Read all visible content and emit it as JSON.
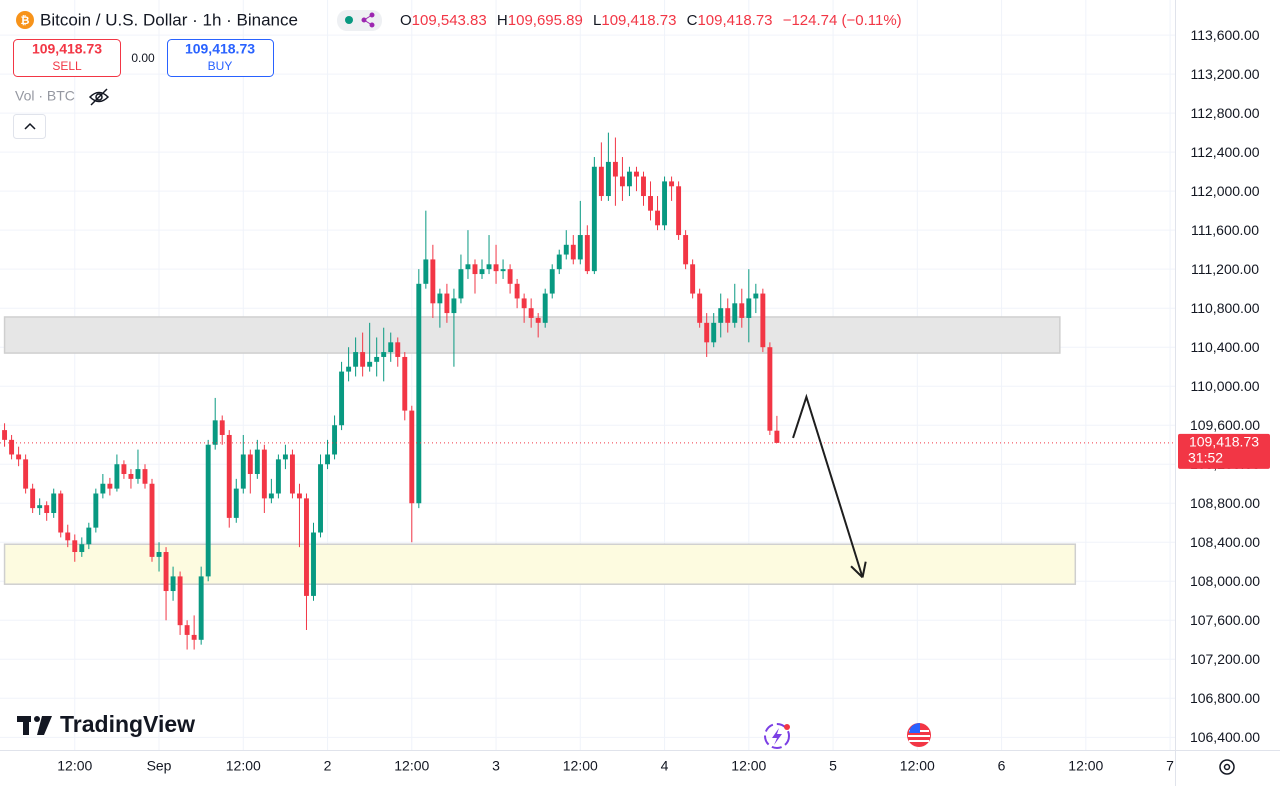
{
  "chart_data": {
    "type": "candlestick",
    "title": "Bitcoin / U.S. Dollar · 1h · Binance",
    "legend": {
      "o": "O",
      "o_value": "109,543.83",
      "h": "H",
      "h_value": "109,695.89",
      "l": "L",
      "l_value": "109,418.73",
      "c": "C",
      "c_value": "109,418.73",
      "change": "−124.74 (−0.11%)"
    },
    "trade": {
      "sell_price": "109,418.73",
      "sell": "SELL",
      "spread": "0.00",
      "buy_price": "109,418.73",
      "buy": "BUY"
    },
    "volume_label": "Vol · BTC",
    "brand": "TradingView",
    "last_price_label": "109,418.73",
    "countdown": "31:52",
    "up_color": "#089981",
    "down_color": "#f23645",
    "grid": true,
    "x": [
      2,
      3,
      4,
      5,
      6,
      7,
      8,
      9,
      10,
      11,
      12,
      13,
      14,
      15,
      16,
      17,
      18,
      19,
      20,
      21,
      22,
      23,
      24,
      25,
      26,
      27,
      28,
      29,
      30,
      31,
      32,
      33,
      34,
      35,
      36,
      37,
      38,
      39,
      40,
      41,
      42,
      43,
      44,
      45,
      46,
      47,
      48,
      49,
      50,
      51,
      52,
      53,
      54,
      55,
      56,
      57,
      58,
      59,
      60,
      61,
      62,
      63,
      64,
      65,
      66,
      67,
      68,
      69,
      70,
      71,
      72,
      73,
      74,
      75,
      76,
      77,
      78,
      79,
      80,
      81,
      82,
      83,
      84,
      85,
      86,
      87,
      88,
      89,
      90,
      91,
      92,
      93,
      94,
      95,
      96,
      97,
      98,
      99,
      100,
      101,
      102,
      103,
      104,
      105,
      106,
      107,
      108,
      109,
      110,
      111,
      112
    ],
    "open": [
      109550,
      109450,
      109300,
      109250,
      108950,
      108750,
      108780,
      108700,
      108900,
      108500,
      108420,
      108300,
      108380,
      108550,
      108900,
      109000,
      108950,
      109200,
      109100,
      109050,
      109150,
      109000,
      108250,
      108300,
      107900,
      108050,
      107550,
      107450,
      107400,
      108050,
      109400,
      109650,
      109500,
      108650,
      108950,
      109300,
      109100,
      109350,
      108850,
      108900,
      109250,
      109300,
      108900,
      108850,
      107850,
      108500,
      109200,
      109300,
      109600,
      110150,
      110200,
      110350,
      110200,
      110250,
      110300,
      110350,
      110450,
      110300,
      109750,
      108800,
      111050,
      111300,
      110850,
      110950,
      110750,
      110900,
      111200,
      111250,
      111150,
      111200,
      111250,
      111180,
      111200,
      111050,
      110900,
      110800,
      110700,
      110650,
      110950,
      111200,
      111350,
      111450,
      111300,
      111550,
      111180,
      112250,
      111950,
      112300,
      112150,
      112050,
      112200,
      112150,
      111950,
      111800,
      111650,
      112100,
      112050,
      111550,
      111250,
      110950,
      110650,
      110450,
      110650,
      110800,
      110650,
      110850,
      110700,
      110900,
      110950,
      110400,
      109543.83
    ],
    "high": [
      109620,
      109500,
      109380,
      109300,
      109000,
      108850,
      108820,
      108950,
      108930,
      108580,
      108480,
      108450,
      108600,
      108950,
      109100,
      109060,
      109300,
      109240,
      109150,
      109350,
      109200,
      109050,
      108400,
      108350,
      108150,
      108100,
      107600,
      107650,
      108150,
      109450,
      109880,
      109700,
      109550,
      109050,
      109500,
      109350,
      109450,
      109400,
      109050,
      109300,
      109400,
      109350,
      109000,
      108900,
      108600,
      109300,
      109450,
      109700,
      110250,
      110400,
      110500,
      110550,
      110650,
      110500,
      110600,
      110550,
      110500,
      110350,
      109800,
      111200,
      111800,
      111450,
      111000,
      111050,
      111000,
      111350,
      111600,
      111300,
      111300,
      111550,
      111450,
      111300,
      111250,
      111100,
      110950,
      110900,
      110750,
      111000,
      111250,
      111400,
      111600,
      111550,
      111900,
      111650,
      112350,
      112500,
      112600,
      112550,
      112350,
      112250,
      112250,
      112200,
      112100,
      111950,
      112150,
      112150,
      112100,
      111600,
      111300,
      111000,
      110750,
      110750,
      110950,
      110900,
      111050,
      111000,
      111200,
      111050,
      111000,
      110450,
      109695.89
    ],
    "low": [
      109380,
      109250,
      109180,
      108900,
      108700,
      108680,
      108620,
      108650,
      108450,
      108350,
      108200,
      108250,
      108330,
      108500,
      108850,
      108880,
      108920,
      109050,
      108950,
      109000,
      108950,
      108200,
      108100,
      107600,
      107800,
      107450,
      107300,
      107300,
      107350,
      108000,
      109350,
      109400,
      108550,
      108600,
      108900,
      108900,
      109050,
      108700,
      108800,
      108850,
      109150,
      108850,
      108350,
      107500,
      107800,
      108450,
      109150,
      109250,
      109550,
      110050,
      110100,
      110100,
      110150,
      110100,
      110050,
      110250,
      110200,
      109650,
      108400,
      108750,
      111000,
      110700,
      110600,
      110650,
      110200,
      110850,
      111100,
      110950,
      111100,
      111150,
      111050,
      111100,
      110950,
      110800,
      110650,
      110600,
      110500,
      110600,
      110900,
      111150,
      111300,
      111250,
      111250,
      111150,
      111150,
      111900,
      111900,
      111850,
      111900,
      111950,
      112000,
      111850,
      111700,
      111600,
      111600,
      111900,
      111500,
      111200,
      110900,
      110600,
      110300,
      110400,
      110500,
      110550,
      110600,
      110600,
      110450,
      110750,
      110350,
      109500,
      109418.73
    ],
    "close": [
      109450,
      109300,
      109250,
      108950,
      108750,
      108780,
      108700,
      108900,
      108500,
      108420,
      108300,
      108380,
      108550,
      108900,
      109000,
      108950,
      109200,
      109100,
      109050,
      109150,
      109000,
      108250,
      108300,
      107900,
      108050,
      107550,
      107450,
      107400,
      108050,
      109400,
      109650,
      109500,
      108650,
      108950,
      109300,
      109100,
      109350,
      108850,
      108900,
      109250,
      109300,
      108900,
      108850,
      107850,
      108500,
      109200,
      109300,
      109600,
      110150,
      110200,
      110350,
      110200,
      110250,
      110300,
      110350,
      110450,
      110300,
      109750,
      108800,
      111050,
      111300,
      110850,
      110950,
      110750,
      110900,
      111200,
      111250,
      111150,
      111200,
      111250,
      111180,
      111200,
      111050,
      110900,
      110800,
      110700,
      110650,
      110950,
      111200,
      111350,
      111450,
      111300,
      111550,
      111180,
      112250,
      111950,
      112300,
      112150,
      112050,
      112200,
      112150,
      111950,
      111800,
      111650,
      112100,
      112050,
      111550,
      111250,
      110950,
      110650,
      110450,
      110650,
      110800,
      110650,
      110850,
      110700,
      110900,
      110950,
      110400,
      109543.83,
      109418.73
    ],
    "xlim": [
      1.35,
      168.7
    ],
    "xticks": [
      {
        "value": 12,
        "label": "12:00"
      },
      {
        "value": 24,
        "label": "Sep"
      },
      {
        "value": 36,
        "label": "12:00"
      },
      {
        "value": 48,
        "label": "2"
      },
      {
        "value": 60,
        "label": "12:00"
      },
      {
        "value": 72,
        "label": "3"
      },
      {
        "value": 84,
        "label": "12:00"
      },
      {
        "value": 96,
        "label": "4"
      },
      {
        "value": 108,
        "label": "12:00"
      },
      {
        "value": 120,
        "label": "5"
      },
      {
        "value": 132,
        "label": "12:00"
      },
      {
        "value": 144,
        "label": "6"
      },
      {
        "value": 156,
        "label": "12:00"
      },
      {
        "value": 168,
        "label": "7"
      }
    ],
    "ylim": [
      106270,
      113960
    ],
    "yticks": [
      {
        "value": 113600,
        "label": "113,600.00"
      },
      {
        "value": 113200,
        "label": "113,200.00"
      },
      {
        "value": 112800,
        "label": "112,800.00"
      },
      {
        "value": 112400,
        "label": "112,400.00"
      },
      {
        "value": 112000,
        "label": "112,000.00"
      },
      {
        "value": 111600,
        "label": "111,600.00"
      },
      {
        "value": 111200,
        "label": "111,200.00"
      },
      {
        "value": 110800,
        "label": "110,800.00"
      },
      {
        "value": 110400,
        "label": "110,400.00"
      },
      {
        "value": 110000,
        "label": "110,000.00"
      },
      {
        "value": 109600,
        "label": "109,600.00"
      },
      {
        "value": 109200,
        "label": "109,200.00"
      },
      {
        "value": 108800,
        "label": "108,800.00"
      },
      {
        "value": 108400,
        "label": "108,400.00"
      },
      {
        "value": 108000,
        "label": "108,000.00"
      },
      {
        "value": 107600,
        "label": "107,600.00"
      },
      {
        "value": 107200,
        "label": "107,200.00"
      },
      {
        "value": 106800,
        "label": "106,800.00"
      },
      {
        "value": 106400,
        "label": "106,400.00"
      }
    ],
    "zones": [
      {
        "xlim": [
          2.0,
          152.3
        ],
        "ylim": [
          110340,
          110710
        ],
        "color": "#e6e6e6"
      },
      {
        "xlim": [
          2.0,
          154.5
        ],
        "ylim": [
          107970,
          108380
        ],
        "color": "#fdfbe0"
      }
    ],
    "arrow": {
      "x": [
        114.3,
        116.2,
        124.2
      ],
      "y": [
        109470,
        109890,
        108040
      ],
      "color": "#1e1e1e"
    }
  }
}
